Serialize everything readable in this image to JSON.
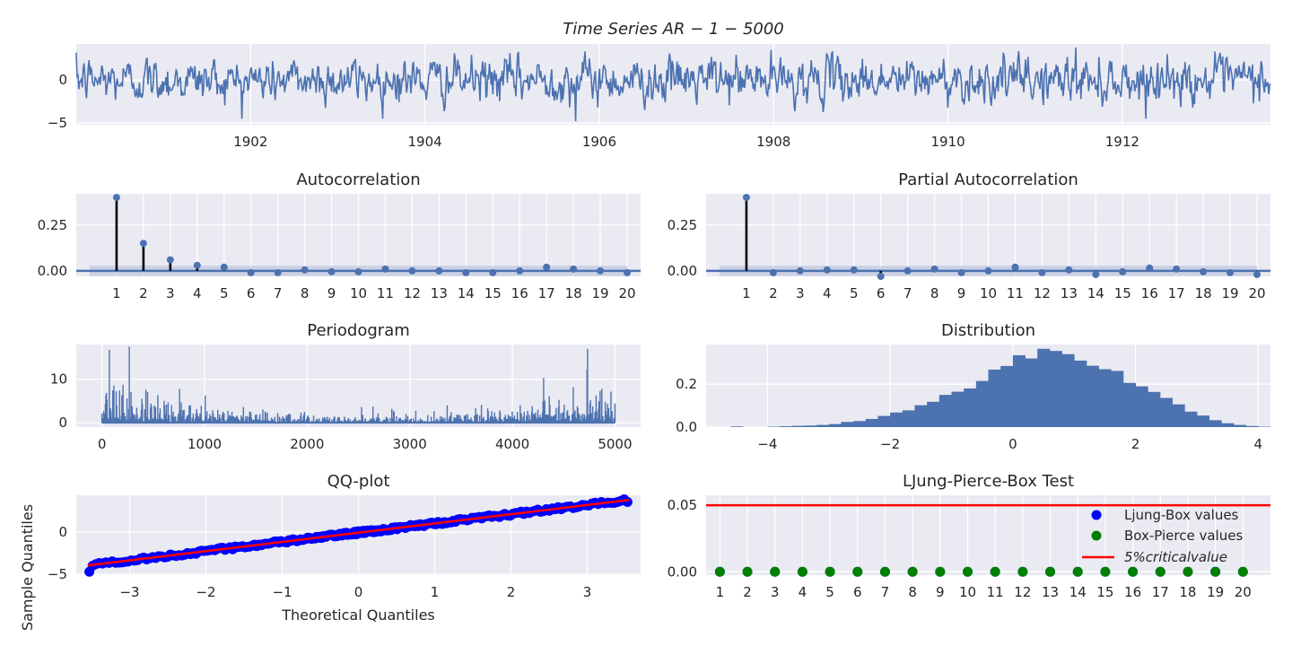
{
  "colors": {
    "series": "#4c72b0",
    "stem": "#000000",
    "qq_points": "#0000ff",
    "qq_line": "#ff0000",
    "ljung_box": "#0000ff",
    "box_pierce": "#008000",
    "critical": "#ff0000",
    "panel_bg": "#eaeaf2",
    "grid": "#ffffff",
    "conf_band": "#b0bcd8"
  },
  "chart_data": [
    {
      "id": "time_series",
      "type": "line",
      "title": "Time Series AR − 1 − 5000",
      "xlabel": "",
      "ylabel": "",
      "xticks": [
        "1902",
        "1904",
        "1906",
        "1908",
        "1910",
        "1912"
      ],
      "xlim": [
        1900.0,
        1913.7
      ],
      "xtick_values": [
        1902,
        1904,
        1906,
        1908,
        1910,
        1912
      ],
      "yticks": [
        "−5",
        "0"
      ],
      "ytick_values": [
        -5,
        0
      ],
      "ylim": [
        -5.2,
        4.2
      ],
      "n_points": 5000,
      "y_min": -4.8,
      "y_max": 3.8,
      "grid": true
    },
    {
      "id": "acf",
      "type": "stem",
      "title": "Autocorrelation",
      "lags": [
        1,
        2,
        3,
        4,
        5,
        6,
        7,
        8,
        9,
        10,
        11,
        12,
        13,
        14,
        15,
        16,
        17,
        18,
        19,
        20
      ],
      "values": [
        0.4,
        0.15,
        0.06,
        0.03,
        0.02,
        -0.01,
        -0.01,
        0.005,
        -0.005,
        -0.005,
        0.01,
        0.0,
        0.0,
        -0.01,
        -0.01,
        0.0,
        0.02,
        0.01,
        0.0,
        -0.01
      ],
      "conf_band": 0.028,
      "yticks": [
        "0.00",
        "0.25"
      ],
      "ytick_values": [
        0,
        0.25
      ],
      "ylim": [
        -0.03,
        0.42
      ],
      "xlim": [
        -0.5,
        20.5
      ],
      "grid": true
    },
    {
      "id": "pacf",
      "type": "stem",
      "title": "Partial Autocorrelation",
      "lags": [
        1,
        2,
        3,
        4,
        5,
        6,
        7,
        8,
        9,
        10,
        11,
        12,
        13,
        14,
        15,
        16,
        17,
        18,
        19,
        20
      ],
      "values": [
        0.4,
        -0.01,
        0.0,
        0.005,
        0.005,
        -0.03,
        0.0,
        0.01,
        -0.01,
        0.0,
        0.02,
        -0.01,
        0.005,
        -0.02,
        -0.005,
        0.015,
        0.01,
        -0.005,
        -0.01,
        -0.02
      ],
      "conf_band": 0.028,
      "yticks": [
        "0.00",
        "0.25"
      ],
      "ytick_values": [
        0,
        0.25
      ],
      "ylim": [
        -0.03,
        0.42
      ],
      "xlim": [
        -0.5,
        20.5
      ],
      "grid": true
    },
    {
      "id": "periodogram",
      "type": "line",
      "title": "Periodogram",
      "xticks": [
        "0",
        "1000",
        "2000",
        "3000",
        "4000",
        "5000"
      ],
      "xtick_values": [
        0,
        1000,
        2000,
        3000,
        4000,
        5000
      ],
      "xlim": [
        -250,
        5250
      ],
      "yticks": [
        "0",
        "10"
      ],
      "ytick_values": [
        0,
        10
      ],
      "ylim": [
        -1,
        18
      ],
      "n_points": 5000,
      "y_max": 17.5,
      "grid": true
    },
    {
      "id": "distribution",
      "type": "histogram",
      "title": "Distribution",
      "bin_start": -4.0,
      "bin_width": 0.2,
      "values": [
        0.003,
        0.0,
        0.0,
        0.002,
        0.004,
        0.006,
        0.007,
        0.01,
        0.014,
        0.024,
        0.028,
        0.038,
        0.052,
        0.068,
        0.078,
        0.102,
        0.118,
        0.15,
        0.165,
        0.18,
        0.215,
        0.268,
        0.285,
        0.335,
        0.32,
        0.365,
        0.355,
        0.34,
        0.31,
        0.286,
        0.27,
        0.262,
        0.206,
        0.19,
        0.164,
        0.136,
        0.106,
        0.072,
        0.054,
        0.032,
        0.018,
        0.01,
        0.005,
        0.002
      ],
      "bin_offset": -4.6,
      "xticks": [
        "−4",
        "−2",
        "0",
        "2",
        "4"
      ],
      "xtick_values": [
        -4,
        -2,
        0,
        2,
        4
      ],
      "xlim": [
        -5.0,
        4.2
      ],
      "yticks": [
        "0.0",
        "0.2"
      ],
      "ytick_values": [
        0,
        0.2
      ],
      "ylim": [
        0,
        0.385
      ],
      "grid": true
    },
    {
      "id": "qq",
      "type": "scatter",
      "title": "QQ-plot",
      "xlabel": "Theoretical Quantiles",
      "ylabel": "Sample Quantiles",
      "xticks": [
        "−3",
        "−2",
        "−1",
        "0",
        "1",
        "2",
        "3"
      ],
      "xtick_values": [
        -3,
        -2,
        -1,
        0,
        1,
        2,
        3
      ],
      "xlim": [
        -3.7,
        3.7
      ],
      "yticks": [
        "−5",
        "0"
      ],
      "ytick_values": [
        -5,
        0
      ],
      "ylim": [
        -5.1,
        4.4
      ],
      "line": {
        "x": [
          -3.55,
          3.55
        ],
        "y": [
          -3.95,
          3.85
        ]
      },
      "theoretical_range": [
        -3.55,
        3.55
      ],
      "sample_min": -4.7,
      "sample_max": 3.6,
      "grid": true
    },
    {
      "id": "ljung_box",
      "type": "scatter",
      "title": "LJung-Pierce-Box Test",
      "lags": [
        1,
        2,
        3,
        4,
        5,
        6,
        7,
        8,
        9,
        10,
        11,
        12,
        13,
        14,
        15,
        16,
        17,
        18,
        19,
        20
      ],
      "series": [
        {
          "name": "Ljung-Box values",
          "values": [
            0,
            0,
            0,
            0,
            0,
            0,
            0,
            0,
            0,
            0,
            0,
            0,
            0,
            0,
            0,
            0,
            0,
            0,
            0,
            0
          ]
        },
        {
          "name": "Box-Pierce values",
          "values": [
            0,
            0,
            0,
            0,
            0,
            0,
            0,
            0,
            0,
            0,
            0,
            0,
            0,
            0,
            0,
            0,
            0,
            0,
            0,
            0
          ]
        }
      ],
      "critical_value": 0.05,
      "critical_label": "5%criticalvalue",
      "yticks": [
        "0.00",
        "0.05"
      ],
      "ytick_values": [
        0,
        0.05
      ],
      "ylim": [
        -0.0025,
        0.0575
      ],
      "xlim": [
        0.5,
        21.0
      ],
      "legend": "right",
      "grid": true
    }
  ]
}
